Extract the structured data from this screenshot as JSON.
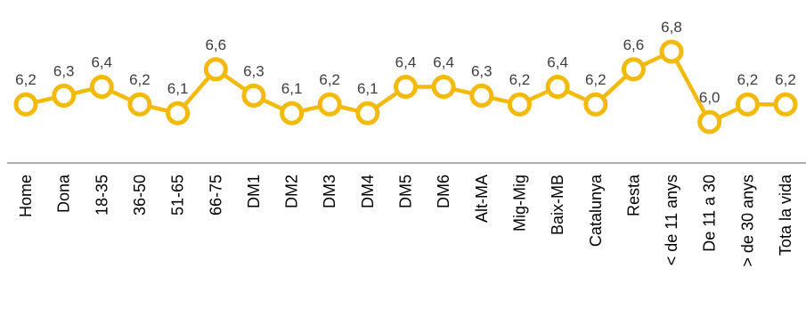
{
  "chart_data": {
    "type": "line",
    "categories": [
      "Home",
      "Dona",
      "18-35",
      "36-50",
      "51-65",
      "66-75",
      "DM1",
      "DM2",
      "DM3",
      "DM4",
      "DM5",
      "DM6",
      "Alt-MA",
      "Mig-Mig",
      "Baix-MB",
      "Catalunya",
      "Resta",
      "< de 11 anys",
      "De 11 a 30",
      "> de 30 anys",
      "Tota la vida"
    ],
    "series": [
      {
        "values": [
          6.2,
          6.3,
          6.4,
          6.2,
          6.1,
          6.6,
          6.3,
          6.1,
          6.2,
          6.1,
          6.4,
          6.4,
          6.3,
          6.2,
          6.4,
          6.2,
          6.6,
          6.8,
          6.0,
          6.2,
          6.2
        ],
        "labels": [
          "6,2",
          "6,3",
          "6,4",
          "6,2",
          "6,1",
          "6,6",
          "6,3",
          "6,1",
          "6,2",
          "6,1",
          "6,4",
          "6,4",
          "6,3",
          "6,2",
          "6,4",
          "6,2",
          "6,6",
          "6,8",
          "6,0",
          "6,2",
          "6,2"
        ]
      }
    ],
    "ylim": [
      4.8,
      7.0
    ],
    "grid": false,
    "legend": "none",
    "colors": {
      "line": "#F2BA0C",
      "marker_fill": "#FFFFFF",
      "axis": "#7F7F7F",
      "label": "#404040"
    }
  }
}
